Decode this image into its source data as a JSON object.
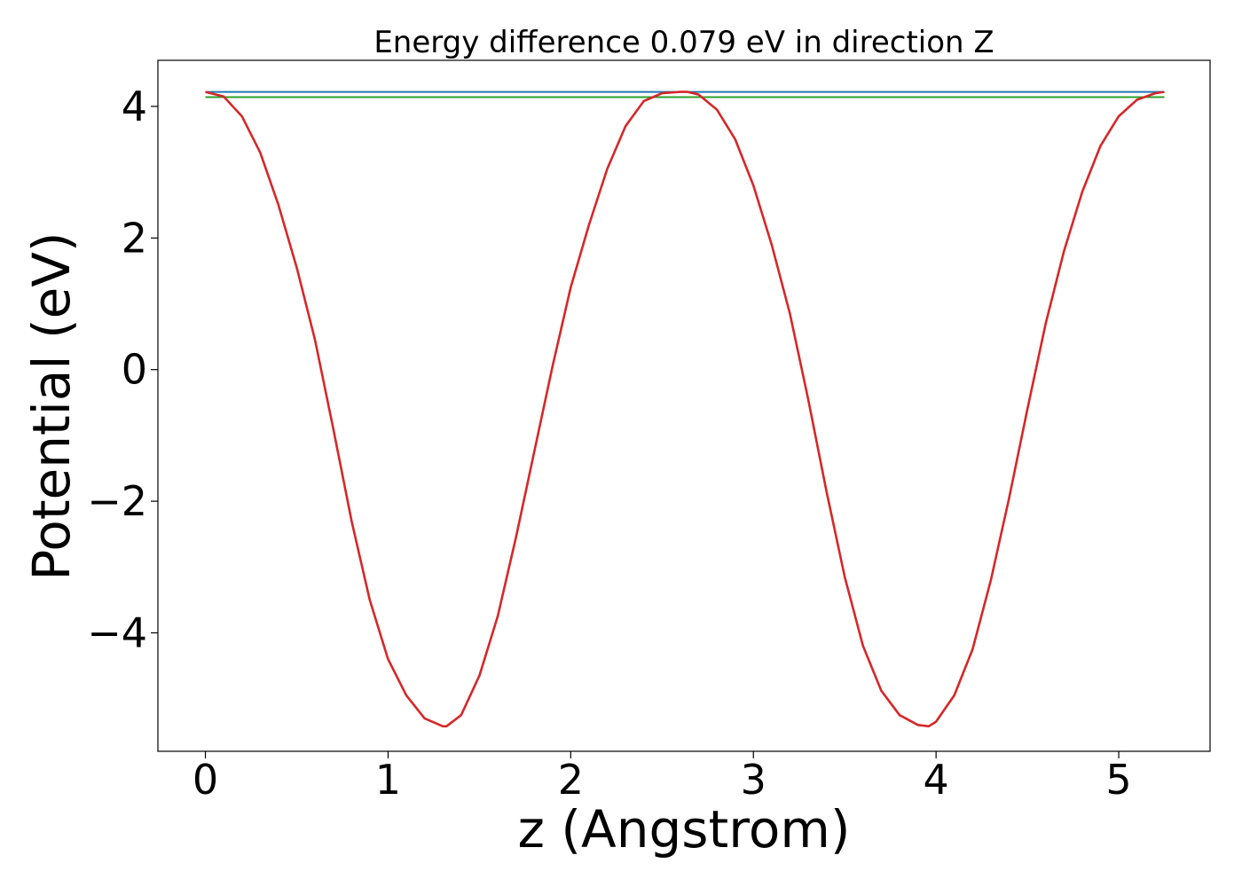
{
  "chart_data": {
    "type": "line",
    "title": "Energy difference 0.079 eV in direction Z",
    "xlabel": "z (Angstrom)",
    "ylabel": "Potential (eV)",
    "xlim": [
      -0.26,
      5.5
    ],
    "ylim": [
      -5.8,
      4.7
    ],
    "x_ticks": [
      0,
      1,
      2,
      3,
      4,
      5
    ],
    "y_ticks": [
      -4,
      -2,
      0,
      2,
      4
    ],
    "x_tick_labels": [
      "0",
      "1",
      "2",
      "3",
      "4",
      "5"
    ],
    "y_tick_labels": [
      "−4",
      "−2",
      "0",
      "2",
      "4"
    ],
    "grid": false,
    "series": [
      {
        "color": "#1f77b4",
        "x": [
          0,
          5.25
        ],
        "y": [
          4.22,
          4.22
        ]
      },
      {
        "color": "#2ca02c",
        "x": [
          0,
          5.25
        ],
        "y": [
          4.14,
          4.14
        ]
      },
      {
        "color": "#d62728",
        "x": [
          0,
          0.1,
          0.2,
          0.3,
          0.4,
          0.5,
          0.6,
          0.7,
          0.8,
          0.9,
          1.0,
          1.1,
          1.2,
          1.3,
          1.32,
          1.4,
          1.5,
          1.6,
          1.7,
          1.8,
          1.9,
          2.0,
          2.1,
          2.2,
          2.3,
          2.4,
          2.5,
          2.6,
          2.64,
          2.7,
          2.8,
          2.9,
          3.0,
          3.1,
          3.2,
          3.3,
          3.4,
          3.5,
          3.6,
          3.7,
          3.8,
          3.9,
          3.96,
          4.0,
          4.1,
          4.2,
          4.3,
          4.4,
          4.5,
          4.6,
          4.7,
          4.8,
          4.9,
          5.0,
          5.1,
          5.2,
          5.25
        ],
        "y": [
          4.22,
          4.15,
          3.85,
          3.3,
          2.5,
          1.55,
          0.45,
          -0.9,
          -2.3,
          -3.5,
          -4.4,
          -4.95,
          -5.3,
          -5.42,
          -5.42,
          -5.25,
          -4.65,
          -3.75,
          -2.55,
          -1.25,
          0.05,
          1.25,
          2.2,
          3.05,
          3.7,
          4.08,
          4.2,
          4.22,
          4.22,
          4.18,
          3.95,
          3.5,
          2.8,
          1.9,
          0.85,
          -0.45,
          -1.85,
          -3.15,
          -4.2,
          -4.88,
          -5.25,
          -5.4,
          -5.42,
          -5.35,
          -4.95,
          -4.25,
          -3.2,
          -1.95,
          -0.6,
          0.7,
          1.8,
          2.7,
          3.4,
          3.85,
          4.1,
          4.2,
          4.22
        ]
      }
    ]
  }
}
